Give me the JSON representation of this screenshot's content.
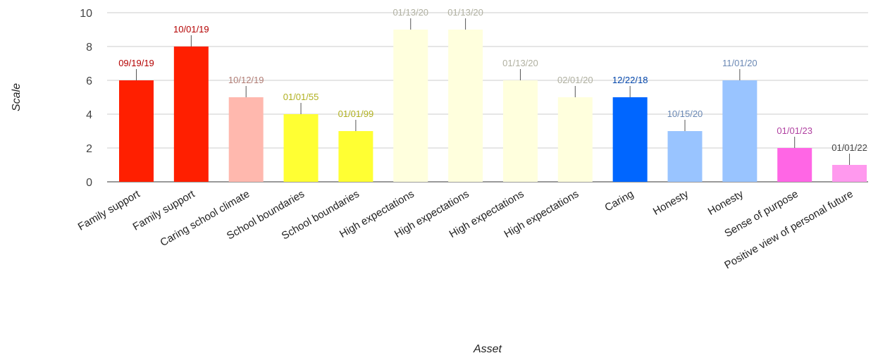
{
  "chart_data": {
    "type": "bar",
    "xlabel": "Asset",
    "ylabel": "Scale",
    "ylim": [
      0,
      10
    ],
    "yticks": [
      0,
      2,
      4,
      6,
      8,
      10
    ],
    "grid": true,
    "categories": [
      "Family support",
      "Family support",
      "Caring school climate",
      "School boundaries",
      "School boundaries",
      "High expectations",
      "High expectations",
      "High expectations",
      "High expectations",
      "Caring",
      "Honesty",
      "Honesty",
      "Sense of purpose",
      "Positive view of personal future"
    ],
    "values": [
      6,
      8,
      5,
      4,
      3,
      9,
      9,
      6,
      5,
      5,
      3,
      6,
      2,
      1
    ],
    "data_labels": [
      "09/19/19",
      "10/01/19",
      "10/12/19",
      "01/01/55",
      "01/01/99",
      "01/13/20",
      "01/13/20",
      "01/13/20",
      "02/01/20",
      "12/22/18",
      "10/15/20",
      "11/01/20",
      "01/01/23",
      "01/01/22"
    ],
    "bar_colors": [
      "#ff1f00",
      "#ff1f00",
      "#ffb8ae",
      "#ffff33",
      "#ffff33",
      "#ffffdd",
      "#ffffdd",
      "#ffffdd",
      "#ffffdd",
      "#0066ff",
      "#99c4ff",
      "#99c4ff",
      "#ff66e5",
      "#ff99ee"
    ],
    "label_colors": [
      "#b40000",
      "#b40000",
      "#b07c74",
      "#b0b020",
      "#b0b020",
      "#b0b0a0",
      "#b0b0a0",
      "#b0b0a0",
      "#b0b0a0",
      "#0044aa",
      "#6a88b4",
      "#6a88b4",
      "#b040a0",
      "#444444"
    ]
  }
}
